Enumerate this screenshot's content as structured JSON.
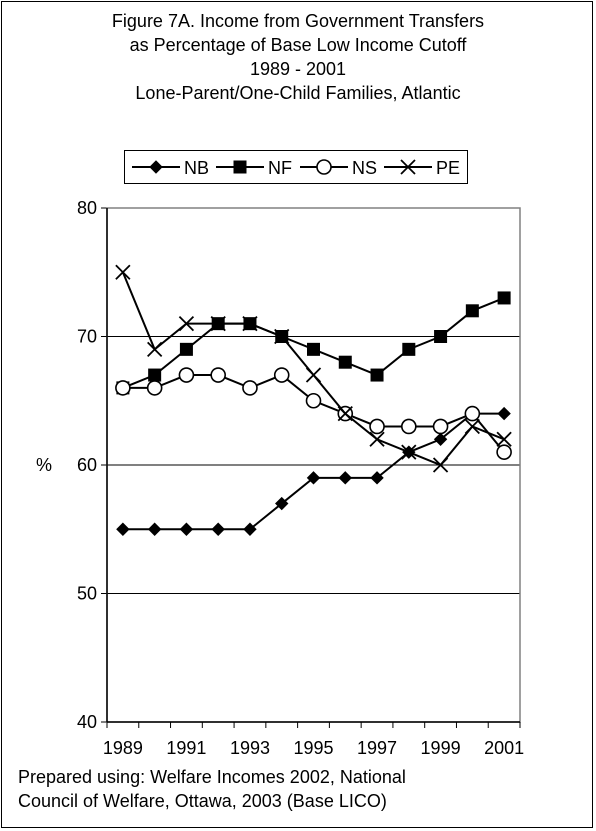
{
  "chart_data": {
    "type": "line",
    "title": [
      "Figure 7A. Income from Government Transfers",
      "as Percentage of Base Low Income Cutoff",
      "1989 - 2001",
      "Lone-Parent/One-Child Families, Atlantic"
    ],
    "ylabel": "%",
    "xlabel": "",
    "x": [
      1989,
      1990,
      1991,
      1992,
      1993,
      1994,
      1995,
      1996,
      1997,
      1998,
      1999,
      2000,
      2001
    ],
    "x_tick_labels": [
      "1989",
      "1991",
      "1993",
      "1995",
      "1997",
      "1999",
      "2001"
    ],
    "y_tick_labels": [
      "40",
      "50",
      "60",
      "70",
      "80"
    ],
    "ylim": [
      40,
      80
    ],
    "grid": "horizontal",
    "legend_position": "top",
    "series": [
      {
        "name": "NB",
        "marker": "diamond-filled",
        "values": [
          55,
          55,
          55,
          55,
          55,
          57,
          59,
          59,
          59,
          61,
          62,
          64,
          64
        ]
      },
      {
        "name": "NF",
        "marker": "square-filled",
        "values": [
          66,
          67,
          69,
          71,
          71,
          70,
          69,
          68,
          67,
          69,
          70,
          72,
          73
        ]
      },
      {
        "name": "NS",
        "marker": "circle-open",
        "values": [
          66,
          66,
          67,
          67,
          66,
          67,
          65,
          64,
          63,
          63,
          63,
          64,
          61
        ]
      },
      {
        "name": "PE",
        "marker": "x",
        "values": [
          75,
          69,
          71,
          71,
          71,
          70,
          67,
          64,
          62,
          61,
          60,
          63,
          62
        ]
      }
    ],
    "source_note": [
      "Prepared using:  Welfare Incomes 2002, National",
      "Council of Welfare, Ottawa, 2003 (Base LICO)"
    ]
  }
}
